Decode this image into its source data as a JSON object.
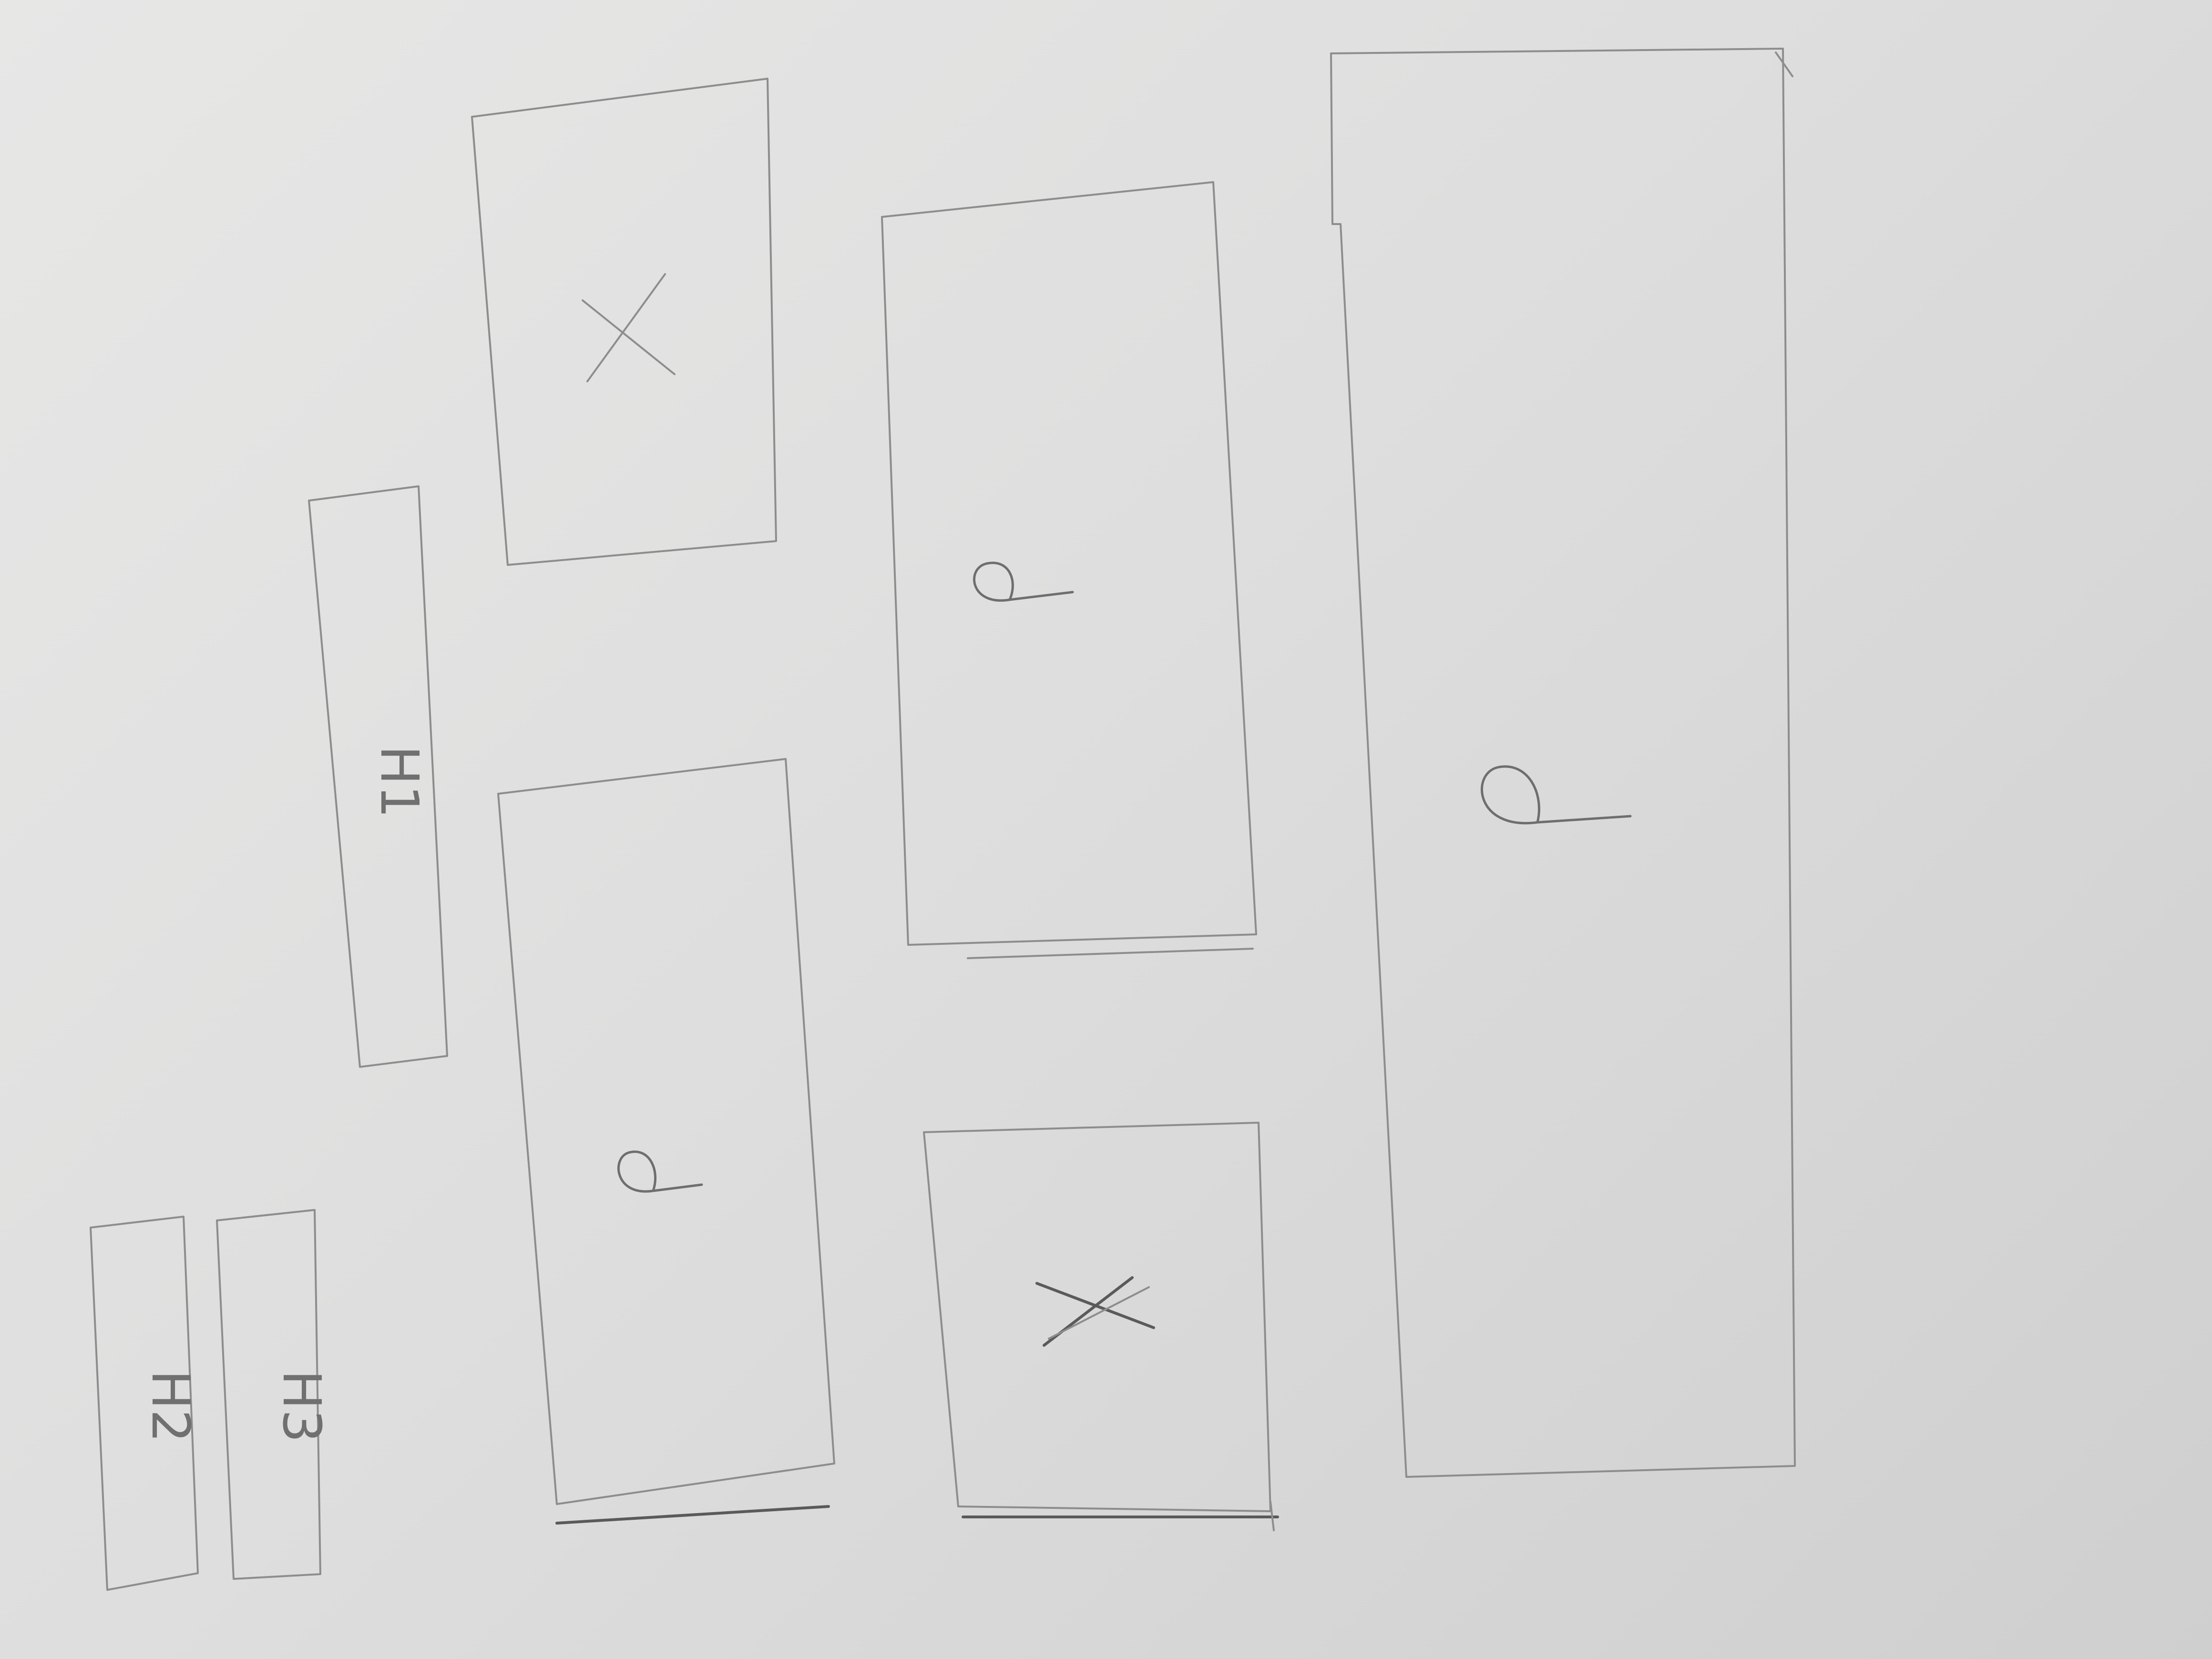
{
  "sketch": {
    "heading_blocks": [
      {
        "id": "h1",
        "label": "H1"
      },
      {
        "id": "h2",
        "label": "H2"
      },
      {
        "id": "h3",
        "label": "H3"
      }
    ],
    "image_placeholders": [
      {
        "id": "image-top",
        "symbol": "cross"
      },
      {
        "id": "image-bottom",
        "symbol": "cross"
      }
    ],
    "paragraph_blocks": [
      {
        "id": "paragraph-left",
        "symbol": "paragraph"
      },
      {
        "id": "paragraph-middle",
        "symbol": "paragraph"
      },
      {
        "id": "paragraph-right-tall",
        "symbol": "paragraph"
      }
    ],
    "colors": {
      "paper": "#e2e2e1",
      "pencil": "#6e6e6e"
    }
  }
}
